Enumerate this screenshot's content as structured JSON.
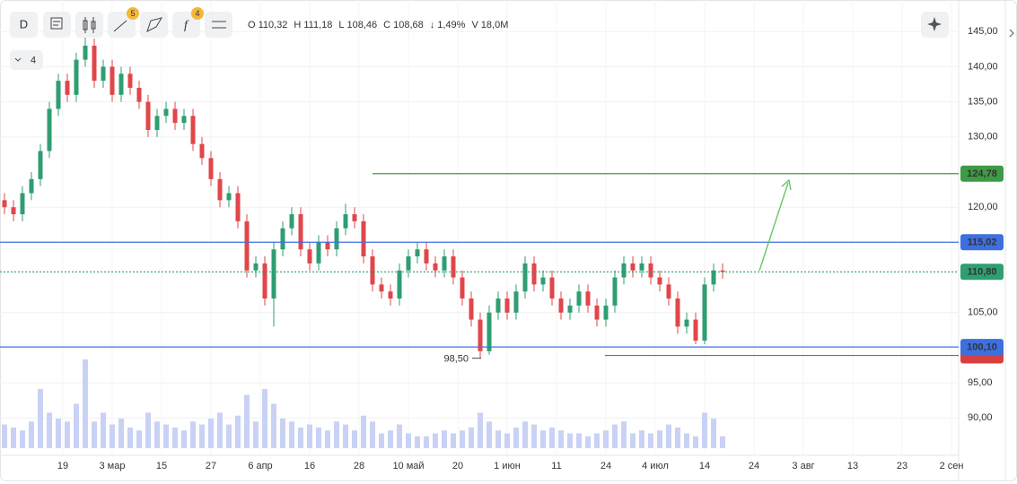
{
  "chart_data": {
    "type": "candlestick",
    "header": {
      "timeframe": "D",
      "badges": [
        "5",
        "4"
      ],
      "indicator_count": "4",
      "ohlc": [
        {
          "k": "O",
          "v": "110,32"
        },
        {
          "k": "H",
          "v": "111,18"
        },
        {
          "k": "L",
          "v": "108,46"
        },
        {
          "k": "C",
          "v": "108,68"
        },
        {
          "k": "↓",
          "v": "1,49%"
        },
        {
          "k": "V",
          "v": "18,0M"
        }
      ]
    },
    "ylim": [
      85.7,
      149.5
    ],
    "yticks": [
      {
        "value": 145,
        "label": "145,00"
      },
      {
        "value": 140,
        "label": "140,00"
      },
      {
        "value": 135,
        "label": "135,00"
      },
      {
        "value": 130,
        "label": "130,00"
      },
      {
        "value": 120,
        "label": "120,00"
      },
      {
        "value": 105,
        "label": "105,00"
      },
      {
        "value": 95,
        "label": "95,00"
      },
      {
        "value": 90,
        "label": "90,00"
      }
    ],
    "grid": true,
    "xlabels": [
      "19",
      "3 мар",
      "15",
      "27",
      "6 апр",
      "16",
      "28",
      "10 май",
      "20",
      "1 июн",
      "11",
      "24",
      "4 июл",
      "14",
      "24",
      "3 авг",
      "13",
      "23",
      "2 сен"
    ],
    "up_color": "#2f9e72",
    "down_color": "#e0464a",
    "volume_color": "#c9d2f5",
    "open": [
      121,
      120,
      119,
      122,
      124,
      128,
      134,
      138,
      136,
      141,
      143,
      138,
      140,
      136,
      139,
      137,
      135,
      131,
      133,
      134,
      132,
      133,
      129,
      127,
      124,
      121,
      122,
      118,
      111,
      112,
      107,
      114,
      117,
      119,
      114,
      112,
      115,
      114,
      117,
      119,
      118,
      113,
      109,
      108,
      107,
      111,
      113,
      114,
      112,
      111,
      113,
      110,
      107,
      104,
      99.5,
      105,
      107,
      105,
      108,
      112,
      109,
      110,
      107,
      105,
      106,
      108,
      106,
      104,
      106,
      110,
      112,
      111,
      112,
      110,
      109,
      107,
      103,
      104,
      101,
      109,
      111
    ],
    "high": [
      122,
      121,
      123,
      125,
      129,
      135,
      139,
      139,
      142,
      145.5,
      144,
      141,
      141,
      140,
      140,
      138,
      136,
      134,
      135,
      135,
      134,
      134,
      130,
      128,
      125,
      123,
      123,
      119,
      113,
      113,
      115,
      118,
      120,
      120,
      115,
      116,
      116,
      118,
      120.5,
      120,
      119,
      114,
      110,
      109,
      112,
      114,
      115,
      115,
      113,
      114,
      114,
      111,
      108,
      105,
      106,
      108,
      108,
      109,
      113,
      113,
      111,
      111,
      108,
      107,
      109,
      109,
      107,
      107,
      111,
      113,
      113,
      113,
      113,
      111,
      110,
      108,
      105,
      105,
      110,
      112,
      112
    ],
    "low": [
      119,
      118,
      118,
      121,
      123,
      127,
      133,
      135,
      135,
      140,
      137,
      137,
      135,
      135,
      136,
      134,
      130,
      130,
      132,
      131,
      131,
      128,
      126,
      123,
      120,
      120,
      117,
      110,
      110,
      106,
      103,
      113,
      116,
      113,
      111,
      111,
      113,
      113,
      116,
      117,
      112,
      108,
      107,
      106,
      106,
      110,
      112,
      111,
      110,
      110,
      109,
      106,
      103,
      98.5,
      99,
      104,
      104,
      104,
      107,
      108,
      108,
      106,
      104,
      104,
      105,
      105,
      103,
      103,
      105,
      109,
      110,
      110,
      109,
      108,
      106,
      102,
      102,
      100.5,
      100.5,
      108,
      109.8
    ],
    "close": [
      120,
      119,
      122,
      124,
      128,
      134,
      138,
      136,
      141,
      143,
      138,
      140,
      136,
      139,
      137,
      135,
      131,
      133,
      134,
      132,
      133,
      129,
      127,
      124,
      121,
      122,
      118,
      111,
      112,
      107,
      114,
      117,
      119,
      114,
      112,
      115,
      114,
      117,
      119,
      118,
      113,
      109,
      108,
      107,
      111,
      113,
      114,
      112,
      111,
      113,
      110,
      107,
      104,
      99.5,
      105,
      107,
      105,
      108,
      112,
      109,
      110,
      107,
      105,
      106,
      108,
      106,
      104,
      106,
      110,
      112,
      111,
      112,
      110,
      109,
      107,
      103,
      104,
      101,
      109,
      111,
      110.8
    ],
    "volume": [
      8,
      7,
      6,
      9,
      20,
      12,
      10,
      9,
      15,
      30,
      9,
      12,
      8,
      10,
      7,
      6,
      12,
      9,
      8,
      7,
      6,
      9,
      8,
      10,
      12,
      8,
      11,
      18,
      9,
      20,
      15,
      10,
      9,
      7,
      8,
      7,
      6,
      9,
      8,
      6,
      11,
      9,
      5,
      6,
      8,
      5,
      4,
      4,
      5,
      6,
      5,
      6,
      7,
      12,
      9,
      6,
      5,
      7,
      9,
      8,
      6,
      7,
      6,
      5,
      5,
      4,
      5,
      6,
      8,
      9,
      5,
      6,
      5,
      6,
      8,
      7,
      5,
      4,
      12,
      10,
      4
    ],
    "levels": [
      {
        "value": 124.78,
        "label": "124,78",
        "color": "#3e9a45",
        "style": "solid",
        "from": "partial"
      },
      {
        "value": 115.02,
        "label": "115,02",
        "color": "#3e6fe0",
        "style": "solid"
      },
      {
        "value": 110.8,
        "label": "110,80",
        "color": "#2f9e72",
        "style": "dotted"
      },
      {
        "value": 98.9,
        "color": "#d6403f",
        "style": "solid",
        "from": "partial2"
      },
      {
        "value": 100.1,
        "label": "100,10",
        "color": "#3e6fe0",
        "style": "solid"
      }
    ],
    "low_label": {
      "value": 98.5,
      "label": "98,50"
    }
  }
}
